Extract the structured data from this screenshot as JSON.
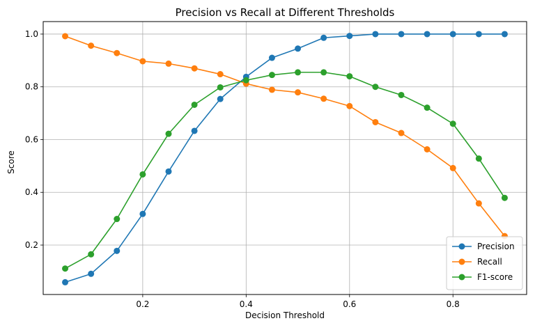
{
  "chart_data": {
    "type": "line",
    "title": "Precision vs Recall at Different Thresholds",
    "xlabel": "Decision Threshold",
    "ylabel": "Score",
    "xlim": [
      0.0075,
      0.9425
    ],
    "ylim": [
      0.0126,
      1.0474
    ],
    "xticks": [
      {
        "value": 0.2,
        "label": "0.2"
      },
      {
        "value": 0.4,
        "label": "0.4"
      },
      {
        "value": 0.6,
        "label": "0.6"
      },
      {
        "value": 0.8,
        "label": "0.8"
      }
    ],
    "yticks": [
      {
        "value": 0.2,
        "label": "0.2"
      },
      {
        "value": 0.4,
        "label": "0.4"
      },
      {
        "value": 0.6,
        "label": "0.6"
      },
      {
        "value": 0.8,
        "label": "0.8"
      },
      {
        "value": 1.0,
        "label": "1.0"
      }
    ],
    "grid": true,
    "legend_position": "lower-right",
    "x": [
      0.05,
      0.1,
      0.15,
      0.2,
      0.25,
      0.3,
      0.35,
      0.4,
      0.45,
      0.5,
      0.55,
      0.6,
      0.65,
      0.7,
      0.75,
      0.8,
      0.85,
      0.9
    ],
    "series": [
      {
        "name": "Precision",
        "color": "#1f77b4",
        "values": [
          0.059,
          0.091,
          0.178,
          0.318,
          0.479,
          0.633,
          0.754,
          0.838,
          0.91,
          0.945,
          0.986,
          0.993,
          1.0,
          1.0,
          1.0,
          1.0,
          1.0,
          1.0
        ]
      },
      {
        "name": "Recall",
        "color": "#ff7f0e",
        "values": [
          0.992,
          0.956,
          0.928,
          0.897,
          0.888,
          0.87,
          0.848,
          0.812,
          0.789,
          0.779,
          0.755,
          0.727,
          0.666,
          0.625,
          0.563,
          0.492,
          0.358,
          0.234
        ]
      },
      {
        "name": "F1-score",
        "color": "#2ca02c",
        "values": [
          0.111,
          0.165,
          0.299,
          0.468,
          0.622,
          0.732,
          0.798,
          0.825,
          0.845,
          0.855,
          0.855,
          0.84,
          0.8,
          0.769,
          0.721,
          0.66,
          0.528,
          0.379
        ]
      }
    ]
  }
}
